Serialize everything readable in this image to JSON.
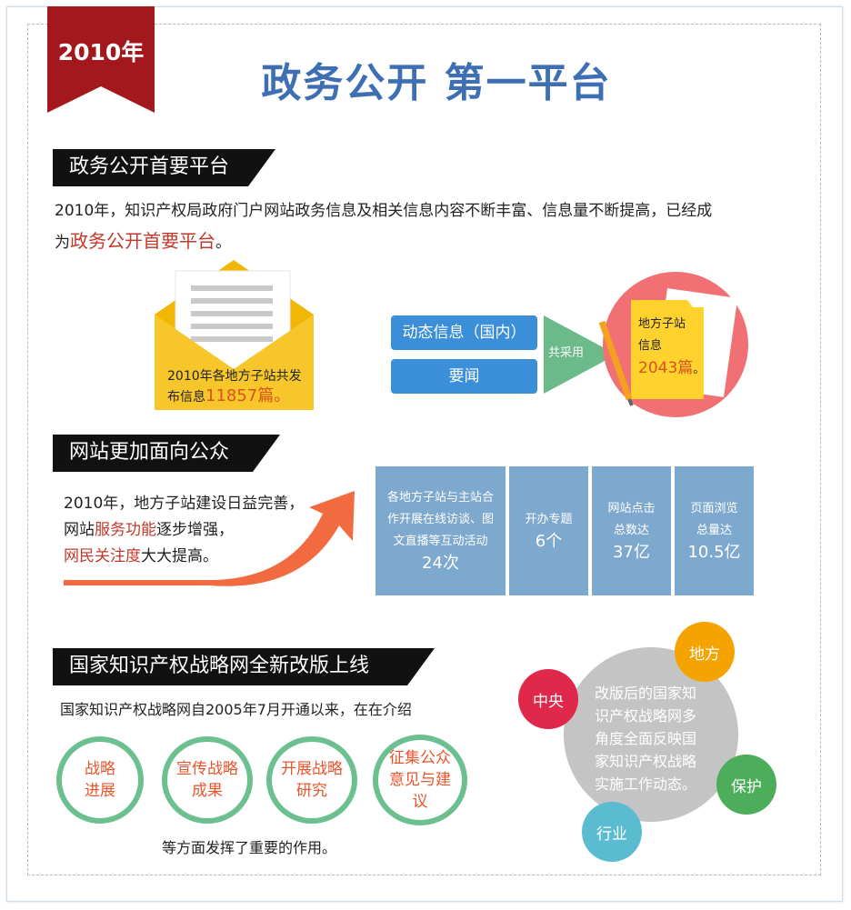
{
  "year_badge": "2010年",
  "title": "政务公开 第一平台",
  "sections": {
    "s1": "政务公开首要平台",
    "s2": "网站更加面向公众",
    "s3": "国家知识产权战略网全新改版上线"
  },
  "intro": {
    "line1": "2010年，知识产权局政府门户网站政务信息及相关信息内容不断丰富、信息量不断提高，已经成",
    "line2_pre": "为",
    "line2_red": "政务公开首要平台",
    "line2_post": "。"
  },
  "envelope": {
    "text1": "2010年各地方子站共发",
    "text2": "布信息",
    "count": "11857篇。"
  },
  "buttons": {
    "dynamic": "动态信息（国内）",
    "news": "要闻"
  },
  "arrow_label": "共采用",
  "folder": {
    "line1": "地方子站",
    "line2": "信息",
    "count": "2043篇",
    "suffix": "。"
  },
  "public": {
    "line1": "2010年，地方子站建设日益完善，",
    "line2_pre": "网站",
    "line2_red": "服务功能",
    "line2_post": "逐步增强，",
    "line3_red": "网民关注度",
    "line3_post": "大大提高。"
  },
  "stats": [
    {
      "l1": "各地方子站与主站合",
      "l2": "作开展在线访谈、图",
      "l3": "文直播等互动活动",
      "value": "24次"
    },
    {
      "l1": "开办专题",
      "value": "6个"
    },
    {
      "l1": "网站点击",
      "l2": "总数达",
      "value": "37亿"
    },
    {
      "l1": "页面浏览",
      "l2": "总量达",
      "value": "10.5亿"
    }
  ],
  "strategy": {
    "intro": "国家知识产权战略网自2005年7月开通以来，在在介绍",
    "outro": "等方面发挥了重要的作用。",
    "rings": [
      {
        "l1": "战略",
        "l2": "进展"
      },
      {
        "l1": "宣传战略",
        "l2": "成果"
      },
      {
        "l1": "开展战略",
        "l2": "研究"
      },
      {
        "l1": "征集公众",
        "l2": "意见与建",
        "l3": "议"
      }
    ]
  },
  "cluster": {
    "center1": "改版后的国家知",
    "center2": "识产权战略网多",
    "center3": "角度全面反映国",
    "center4": "家知识产权战略",
    "center5": "实施工作动态。",
    "central": "中央",
    "local": "地方",
    "protect": "保护",
    "industry": "行业"
  },
  "colors": {
    "ribbon": "#a3181d",
    "title": "#3e6fb3",
    "red_text": "#c0392b",
    "button": "#3a8fd8",
    "stat": "#7ea9cf",
    "ring": "#6cc08f",
    "central": "#e0284b",
    "local": "#f5a300",
    "protect": "#4cae5b",
    "industry": "#5bbbd0"
  }
}
